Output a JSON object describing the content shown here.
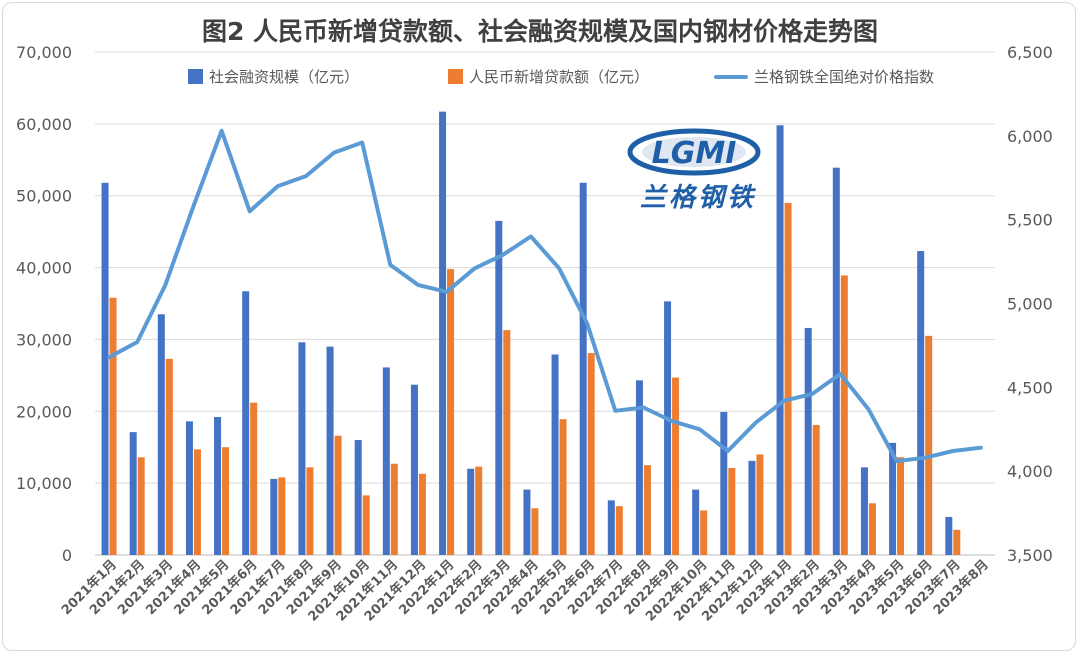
{
  "chart_data": {
    "type": "bar+line",
    "title": "图2 人民币新增贷款额、社会融资规模及国内钢材价格走势图",
    "categories": [
      "2021年1月",
      "2021年2月",
      "2021年3月",
      "2021年4月",
      "2021年5月",
      "2021年6月",
      "2021年7月",
      "2021年8月",
      "2021年9月",
      "2021年10月",
      "2021年11月",
      "2021年12月",
      "2022年1月",
      "2022年2月",
      "2022年3月",
      "2022年4月",
      "2022年5月",
      "2022年6月",
      "2022年7月",
      "2022年8月",
      "2022年9月",
      "2022年10月",
      "2022年11月",
      "2022年12月",
      "2023年1月",
      "2023年2月",
      "2023年3月",
      "2023年4月",
      "2023年5月",
      "2023年6月",
      "2023年7月",
      "2023年8月"
    ],
    "y_left": {
      "ylim": [
        0,
        70000
      ],
      "ticks": [
        "0",
        "10,000",
        "20,000",
        "30,000",
        "40,000",
        "50,000",
        "60,000",
        "70,000"
      ]
    },
    "y_right": {
      "ylim": [
        3500,
        6500
      ],
      "ticks": [
        "3,500",
        "4,000",
        "4,500",
        "5,000",
        "5,500",
        "6,000",
        "6,500"
      ]
    },
    "series": [
      {
        "name": "社会融资规模（亿元）",
        "kind": "bar",
        "axis": "left",
        "color": "#4472C4",
        "values": [
          51800,
          17100,
          33500,
          18600,
          19200,
          36700,
          10600,
          29600,
          29000,
          16000,
          26100,
          23700,
          61700,
          12000,
          46500,
          9100,
          27900,
          51800,
          7600,
          24300,
          35300,
          9100,
          19900,
          13100,
          59800,
          31600,
          53900,
          12200,
          15600,
          42300,
          5300,
          null
        ]
      },
      {
        "name": "人民币新增贷款额（亿元）",
        "kind": "bar",
        "axis": "left",
        "color": "#ED7D31",
        "values": [
          35800,
          13600,
          27300,
          14700,
          15000,
          21200,
          10800,
          12200,
          16600,
          8300,
          12700,
          11300,
          39800,
          12300,
          31300,
          6500,
          18900,
          28100,
          6800,
          12500,
          24700,
          6200,
          12100,
          14000,
          49000,
          18100,
          38900,
          7200,
          13600,
          30500,
          3500,
          null
        ]
      },
      {
        "name": "兰格钢铁全国绝对价格指数",
        "kind": "line",
        "axis": "right",
        "color": "#5B9BD5",
        "values": [
          4680,
          4770,
          5110,
          5580,
          6030,
          5550,
          5700,
          5760,
          5900,
          5960,
          5230,
          5110,
          5070,
          5210,
          5290,
          5400,
          5210,
          4880,
          4360,
          4380,
          4300,
          4250,
          4120,
          4290,
          4420,
          4460,
          4580,
          4370,
          4060,
          4080,
          4120,
          4140
        ]
      }
    ],
    "legend_position": "top"
  },
  "logo": {
    "mark": "LGMI",
    "name": "兰格钢铁"
  }
}
